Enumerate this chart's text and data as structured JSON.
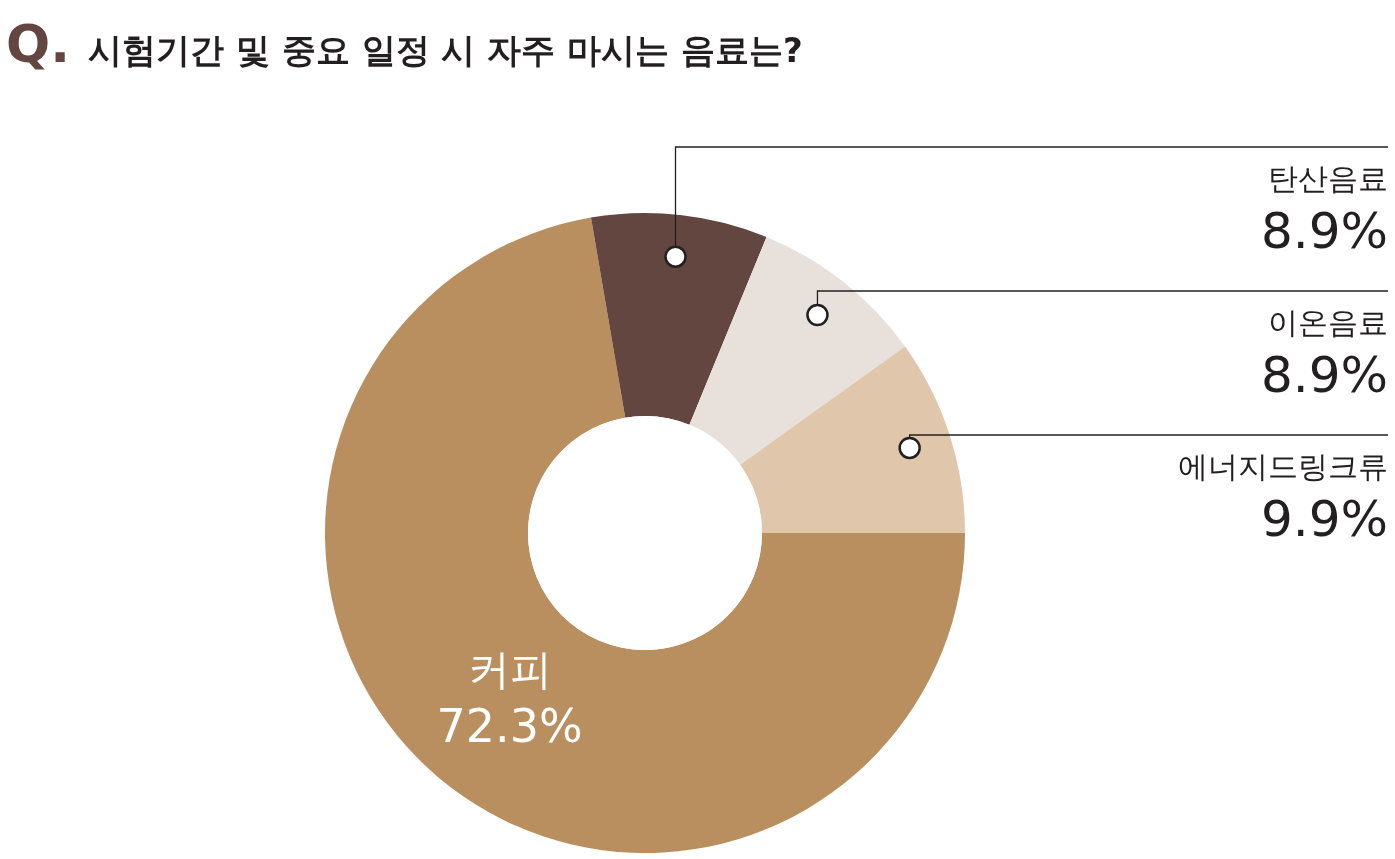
{
  "chart_data": {
    "type": "donut",
    "title": "Q. 시험기간 및 중요 일정 시 자주 마시는 음료는?",
    "categories": [
      "커피",
      "탄산음료",
      "이온음료",
      "에너지드링크류"
    ],
    "values": [
      72.3,
      8.9,
      8.9,
      9.9
    ],
    "colors": [
      "#b98f60",
      "#634640",
      "#e8e0da",
      "#e0c6ab"
    ],
    "value_labels": [
      "72.3%",
      "8.9%",
      "8.9%",
      "9.9%"
    ],
    "legend": false
  }
}
